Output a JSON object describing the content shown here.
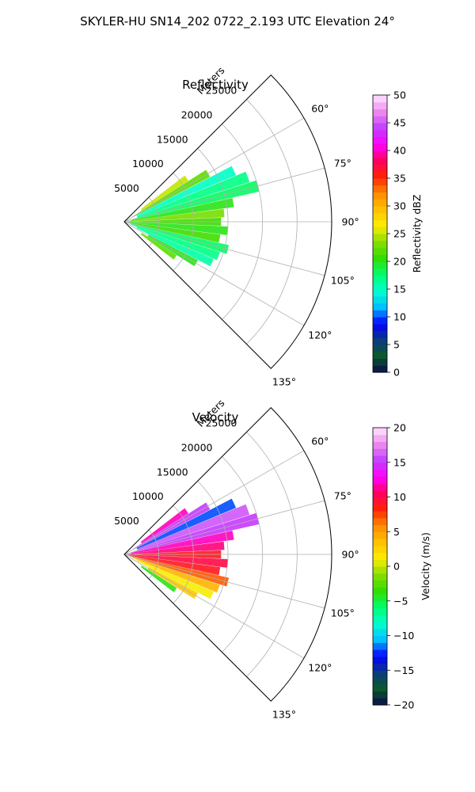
{
  "suptitle": "SKYLER-HU  SN14_202  0722_2.193 UTC Elevation 24°",
  "panels": [
    {
      "title": "Reflectivity",
      "range_label": "Meters",
      "colorbar": {
        "label": "Reflectivity dBZ",
        "min": 0,
        "max": 50,
        "ticks": [
          "0",
          "5",
          "10",
          "15",
          "20",
          "25",
          "30",
          "35",
          "40",
          "45",
          "50"
        ],
        "stops": [
          "#0b0b4d",
          "#0a5a2a",
          "#0b3a80",
          "#0000ff",
          "#00c0ff",
          "#00ffd0",
          "#00ff70",
          "#33dd00",
          "#88dd00",
          "#ffee00",
          "#ffc000",
          "#ff8a00",
          "#ff2200",
          "#ff0060",
          "#ff00ff",
          "#c040ff",
          "#ee88ee",
          "#ffe6ff"
        ]
      }
    },
    {
      "title": "Velocity",
      "range_label": "Meters",
      "colorbar": {
        "label": "Velocity (m/s)",
        "min": -20,
        "max": 20,
        "ticks": [
          "−20",
          "−15",
          "−10",
          "−5",
          "0",
          "5",
          "10",
          "15",
          "20"
        ],
        "stops": [
          "#0b0b4d",
          "#0a5a2a",
          "#0b3a80",
          "#0000ff",
          "#00c0ff",
          "#00ffd0",
          "#00ff70",
          "#33dd00",
          "#88dd00",
          "#ffee00",
          "#ffc000",
          "#ff8a00",
          "#ff2200",
          "#ff0060",
          "#ff00ff",
          "#c040ff",
          "#ee88ee",
          "#ffe6ff"
        ]
      }
    }
  ],
  "chart_data": [
    {
      "type": "polar-sector-radar",
      "title": "Reflectivity",
      "units": "dBZ",
      "theta_range_deg": [
        45,
        135
      ],
      "theta_ticks_deg": [
        60,
        75,
        90,
        105,
        120,
        135
      ],
      "theta_tick_labels": [
        "60°",
        "75°",
        "90°",
        "105°",
        "120°",
        "135°"
      ],
      "r_range_m": [
        0,
        30000
      ],
      "r_ticks_m": [
        5000,
        10000,
        15000,
        20000,
        25000
      ],
      "r_tick_labels": [
        "5000",
        "10000",
        "15000",
        "20000",
        "25000"
      ],
      "grid": true,
      "echo_cells": [
        {
          "az": 55,
          "r0": 3000,
          "r1": 11000,
          "value": 25
        },
        {
          "az": 60,
          "r0": 1500,
          "r1": 14000,
          "value": 22
        },
        {
          "az": 65,
          "r0": 2000,
          "r1": 17500,
          "value": 15
        },
        {
          "az": 70,
          "r0": 2000,
          "r1": 19000,
          "value": 17
        },
        {
          "az": 75,
          "r0": 1000,
          "r1": 20000,
          "value": 18
        },
        {
          "az": 80,
          "r0": 1000,
          "r1": 16000,
          "value": 20
        },
        {
          "az": 85,
          "r0": 500,
          "r1": 14500,
          "value": 23
        },
        {
          "az": 90,
          "r0": 500,
          "r1": 14000,
          "value": 21
        },
        {
          "az": 95,
          "r0": 500,
          "r1": 15000,
          "value": 20
        },
        {
          "az": 100,
          "r0": 500,
          "r1": 14000,
          "value": 21
        },
        {
          "az": 105,
          "r0": 500,
          "r1": 15500,
          "value": 18
        },
        {
          "az": 110,
          "r0": 1000,
          "r1": 14500,
          "value": 17
        },
        {
          "az": 115,
          "r0": 2000,
          "r1": 14000,
          "value": 16
        },
        {
          "az": 120,
          "r0": 4000,
          "r1": 12000,
          "value": 20
        },
        {
          "az": 125,
          "r0": 3000,
          "r1": 9000,
          "value": 22
        }
      ]
    },
    {
      "type": "polar-sector-radar",
      "title": "Velocity",
      "units": "m/s",
      "theta_range_deg": [
        45,
        135
      ],
      "theta_ticks_deg": [
        60,
        75,
        90,
        105,
        120,
        135
      ],
      "theta_tick_labels": [
        "60°",
        "75°",
        "90°",
        "105°",
        "120°",
        "135°"
      ],
      "r_range_m": [
        0,
        30000
      ],
      "r_ticks_m": [
        5000,
        10000,
        15000,
        20000,
        25000
      ],
      "r_tick_labels": [
        "5000",
        "10000",
        "15000",
        "20000",
        "25000"
      ],
      "grid": true,
      "echo_cells": [
        {
          "az": 55,
          "r0": 3000,
          "r1": 11000,
          "value": 12
        },
        {
          "az": 60,
          "r0": 1500,
          "r1": 14000,
          "value": 15
        },
        {
          "az": 65,
          "r0": 2000,
          "r1": 17500,
          "value": -12
        },
        {
          "az": 70,
          "r0": 2000,
          "r1": 19000,
          "value": 16
        },
        {
          "az": 75,
          "r0": 1000,
          "r1": 20000,
          "value": 15
        },
        {
          "az": 80,
          "r0": 1000,
          "r1": 16000,
          "value": 12
        },
        {
          "az": 85,
          "r0": 500,
          "r1": 14500,
          "value": 11
        },
        {
          "az": 90,
          "r0": 500,
          "r1": 14000,
          "value": 9
        },
        {
          "az": 95,
          "r0": 500,
          "r1": 15000,
          "value": 10
        },
        {
          "az": 100,
          "r0": 500,
          "r1": 14000,
          "value": 9
        },
        {
          "az": 105,
          "r0": 500,
          "r1": 15500,
          "value": 7
        },
        {
          "az": 110,
          "r0": 1000,
          "r1": 14500,
          "value": 4
        },
        {
          "az": 115,
          "r0": 2000,
          "r1": 14000,
          "value": 1
        },
        {
          "az": 120,
          "r0": 4000,
          "r1": 12000,
          "value": 3
        },
        {
          "az": 125,
          "r0": 3000,
          "r1": 9000,
          "value": -4
        }
      ]
    }
  ]
}
